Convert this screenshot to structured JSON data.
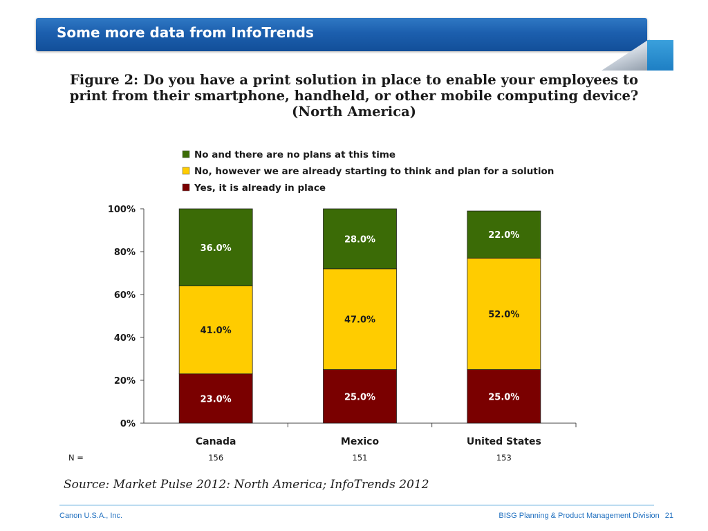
{
  "slide": {
    "title": "Some more data from InfoTrends",
    "figure_title_lines": [
      "Figure 2: Do you have a print solution in place to enable your employees to",
      "print from their smartphone, handheld, or other mobile computing device?",
      "(North America)"
    ],
    "n_label": "N =",
    "n_values": [
      "156",
      "151",
      "153"
    ],
    "source": "Source: Market Pulse 2012: North America; InfoTrends 2012",
    "footer_left": "Canon U.S.A., Inc.",
    "footer_right": "BISG Planning & Product Management Division",
    "page_number": "21"
  },
  "colors": {
    "title_bar": "#1c5fae",
    "series_no_plans": "#3b6b06",
    "series_thinking": "#ffcc00",
    "series_in_place": "#7a0000",
    "label_light": "#ffffff",
    "label_dark": "#1a1a1a",
    "footer_text": "#1f6fbf"
  },
  "chart_data": {
    "type": "bar",
    "stacked": true,
    "categories": [
      "Canada",
      "Mexico",
      "United States"
    ],
    "y_ticks": [
      "0%",
      "20%",
      "40%",
      "60%",
      "80%",
      "100%"
    ],
    "ylim": [
      0,
      100
    ],
    "grid": false,
    "legend_position": "top",
    "series": [
      {
        "name": "Yes, it is already in place",
        "color": "#7a0000",
        "values": [
          23.0,
          25.0,
          25.0
        ],
        "labels": [
          "23.0%",
          "25.0%",
          "25.0%"
        ],
        "label_color": "#ffffff"
      },
      {
        "name": "No, however we are already starting to think and plan for a solution",
        "color": "#ffcc00",
        "values": [
          41.0,
          47.0,
          52.0
        ],
        "labels": [
          "41.0%",
          "47.0%",
          "52.0%"
        ],
        "label_color": "#1a1a1a"
      },
      {
        "name": "No and there are no plans at this time",
        "color": "#3b6b06",
        "values": [
          36.0,
          28.0,
          22.0
        ],
        "labels": [
          "36.0%",
          "28.0%",
          "22.0%"
        ],
        "label_color": "#ffffff"
      }
    ],
    "legend_order": [
      2,
      1,
      0
    ]
  }
}
